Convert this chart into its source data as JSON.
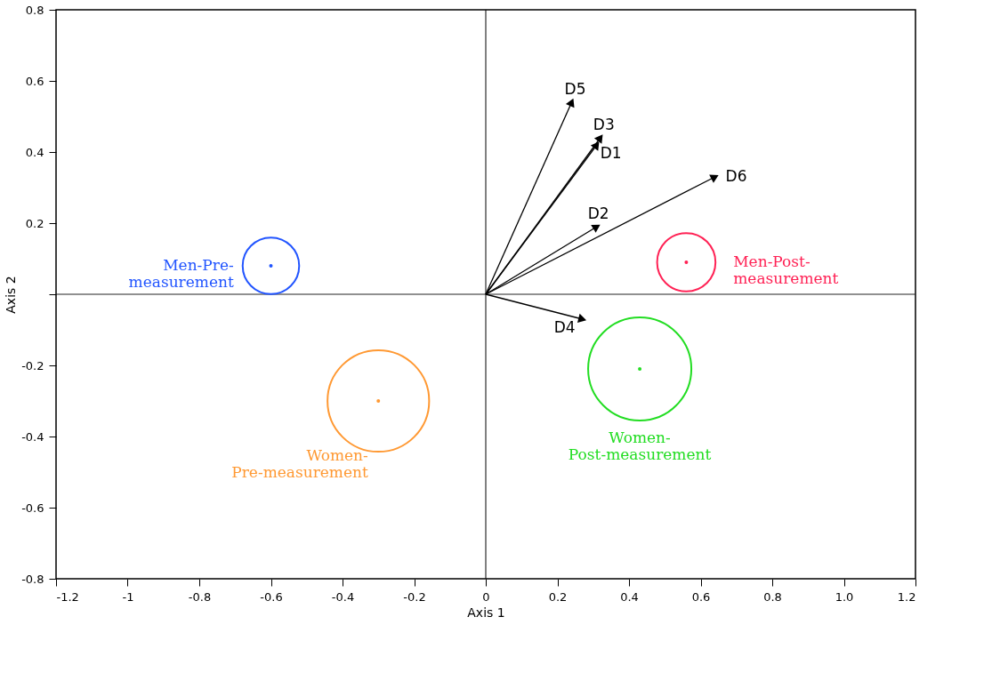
{
  "chart_data": {
    "type": "scatter",
    "xlabel": "Axis 1",
    "ylabel": "Axis 2",
    "xlim": [
      -1.2,
      1.2
    ],
    "ylim": [
      -0.8,
      0.8
    ],
    "xticks": [
      -1.2,
      -1,
      -0.8,
      -0.6,
      -0.4,
      -0.2,
      0,
      0.2,
      0.4,
      0.6,
      0.8,
      {
        "value": 1,
        "label": "1.0"
      },
      1.2
    ],
    "yticks": [
      -0.8,
      -0.6,
      -0.4,
      -0.2,
      {
        "value": 0,
        "label": null
      },
      0.2,
      0.4,
      0.6,
      0.8
    ],
    "grid": false,
    "legend": false,
    "ref_lines": [
      {
        "axis": "x",
        "value": 0,
        "color": "#000000"
      },
      {
        "axis": "y",
        "value": 0,
        "color": "#222222"
      }
    ],
    "series": [
      {
        "type": "bubble",
        "name": "Men-Pre-\nmeasurement",
        "color": "#2255ff",
        "x": [
          -0.6
        ],
        "values": [
          0.08
        ],
        "sizes": [
          0.3
        ]
      },
      {
        "type": "bubble",
        "name": "Men-Post-\nmeasurement",
        "color": "#ff2255",
        "x": [
          0.56
        ],
        "values": [
          0.09
        ],
        "sizes": [
          0.32
        ]
      },
      {
        "type": "bubble",
        "name": "Women-\nPre-measurement",
        "color": "#ff9933",
        "x": [
          -0.3
        ],
        "values": [
          -0.3
        ],
        "sizes": [
          0.97
        ]
      },
      {
        "type": "bubble",
        "name": "Women-\nPost-measurement",
        "color": "#22dd22",
        "x": [
          0.43
        ],
        "values": [
          -0.21
        ],
        "sizes": [
          1
        ]
      },
      {
        "type": "line",
        "marker": "triangle",
        "name": "D1",
        "color": "#000000",
        "x": [
          0,
          0.31
        ],
        "values": [
          0,
          0.42
        ]
      },
      {
        "type": "line",
        "marker": "triangle",
        "name": "D2",
        "color": "#000000",
        "x": [
          0,
          0.31
        ],
        "values": [
          0,
          0.19
        ]
      },
      {
        "type": "line",
        "marker": "triangle",
        "name": "D3",
        "color": "#000000",
        "x": [
          0,
          0.32
        ],
        "values": [
          0,
          0.44
        ]
      },
      {
        "type": "line",
        "marker": "triangle",
        "name": "D4",
        "color": "#000000",
        "x": [
          0,
          0.27
        ],
        "values": [
          0,
          -0.07
        ]
      },
      {
        "type": "line",
        "marker": "triangle",
        "name": "D5",
        "color": "#000000",
        "x": [
          0,
          0.24
        ],
        "values": [
          0,
          0.54
        ]
      },
      {
        "type": "line",
        "marker": "triangle",
        "name": "D6",
        "color": "#000000",
        "x": [
          0,
          0.64
        ],
        "values": [
          0,
          0.33
        ]
      }
    ]
  }
}
